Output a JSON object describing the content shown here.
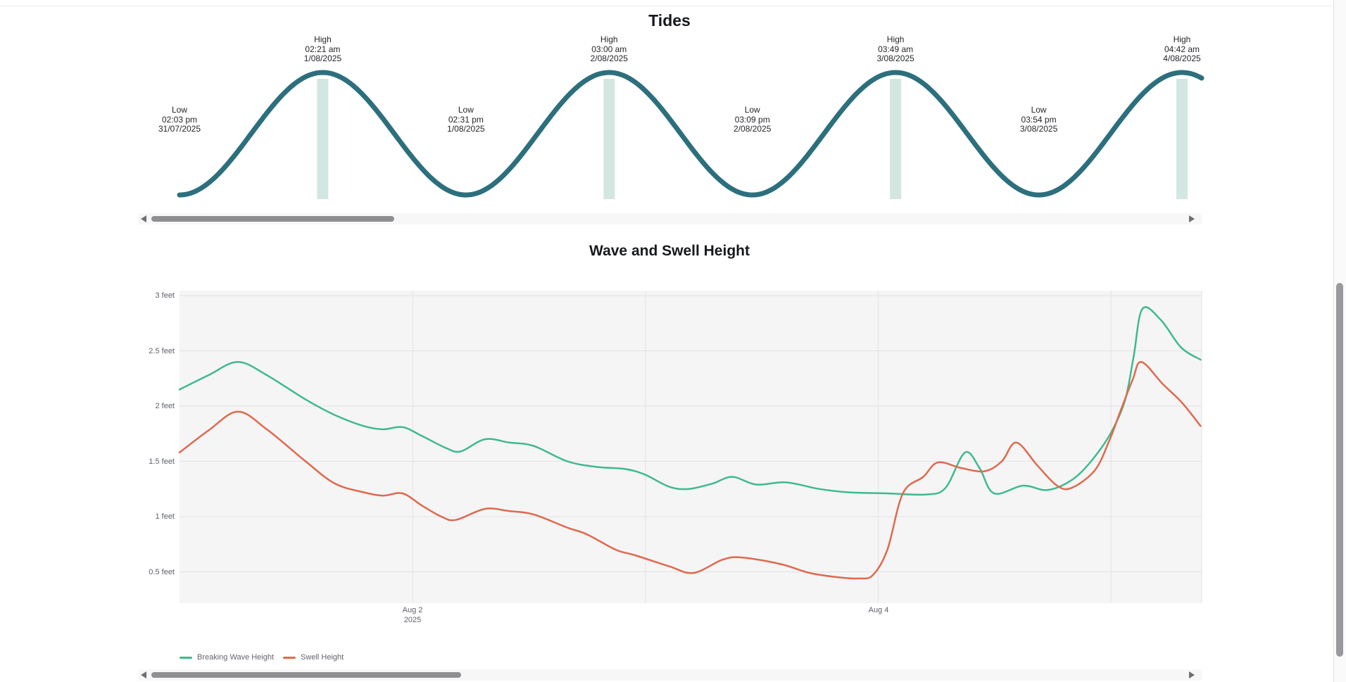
{
  "tides": {
    "title": "Tides",
    "colors": {
      "curve": "#2c6f7d",
      "band": "#d3e7e2"
    }
  },
  "wave": {
    "title": "Wave and Swell Height",
    "y_ticks": [
      "3 feet",
      "2.5 feet",
      "2 feet",
      "1.5 feet",
      "1 feet",
      "0.5 feet"
    ],
    "x_ticks": [
      {
        "label": "Aug 2",
        "sub": "2025"
      },
      {
        "label": "Aug 4",
        "sub": ""
      }
    ],
    "colors": {
      "grid": "#e3e3e7",
      "plot_bg": "#f5f5f6",
      "axis_text": "#5f626b",
      "legend_text": "#63656e"
    }
  },
  "chart_data": [
    {
      "type": "line",
      "title": "Tides",
      "x_axis": "time",
      "y_axis": "tide level (qualitative high/low curve)",
      "events": [
        {
          "phase": "Low",
          "time": "02:03 pm",
          "date": "31/07/2025"
        },
        {
          "phase": "High",
          "time": "02:21 am",
          "date": "1/08/2025"
        },
        {
          "phase": "Low",
          "time": "02:31 pm",
          "date": "1/08/2025"
        },
        {
          "phase": "High",
          "time": "03:00 am",
          "date": "2/08/2025"
        },
        {
          "phase": "Low",
          "time": "03:09 pm",
          "date": "2/08/2025"
        },
        {
          "phase": "High",
          "time": "03:49 am",
          "date": "3/08/2025"
        },
        {
          "phase": "Low",
          "time": "03:54 pm",
          "date": "3/08/2025"
        },
        {
          "phase": "High",
          "time": "04:42 am",
          "date": "4/08/2025"
        }
      ]
    },
    {
      "type": "line",
      "title": "Wave and Swell Height",
      "ylabel": "feet",
      "ylim": [
        0.2,
        3.05
      ],
      "x_unit": "hours since 2025-08-01 00:00",
      "x_ticks": [
        "Aug 2 2025",
        "Aug 4"
      ],
      "grid": true,
      "legend_position": "bottom-left",
      "series": [
        {
          "name": "Breaking Wave Height",
          "color": "#3fba8c",
          "points": [
            [
              0,
              2.15
            ],
            [
              3,
              2.28
            ],
            [
              6,
              2.4
            ],
            [
              9,
              2.28
            ],
            [
              13,
              2.06
            ],
            [
              16,
              1.92
            ],
            [
              19,
              1.82
            ],
            [
              21,
              1.79
            ],
            [
              23,
              1.81
            ],
            [
              25,
              1.73
            ],
            [
              27.5,
              1.62
            ],
            [
              29,
              1.59
            ],
            [
              31.5,
              1.7
            ],
            [
              34,
              1.67
            ],
            [
              36.5,
              1.64
            ],
            [
              40,
              1.5
            ],
            [
              43,
              1.45
            ],
            [
              46,
              1.43
            ],
            [
              48,
              1.38
            ],
            [
              50.5,
              1.27
            ],
            [
              52.5,
              1.25
            ],
            [
              55,
              1.3
            ],
            [
              57,
              1.36
            ],
            [
              59.5,
              1.29
            ],
            [
              62.5,
              1.31
            ],
            [
              66,
              1.25
            ],
            [
              69,
              1.22
            ],
            [
              73,
              1.21
            ],
            [
              77,
              1.2
            ],
            [
              79,
              1.26
            ],
            [
              81,
              1.58
            ],
            [
              82.5,
              1.44
            ],
            [
              84,
              1.21
            ],
            [
              87,
              1.28
            ],
            [
              89.5,
              1.24
            ],
            [
              92,
              1.33
            ],
            [
              94,
              1.5
            ],
            [
              96,
              1.75
            ],
            [
              97.5,
              2.05
            ],
            [
              98.4,
              2.45
            ],
            [
              99.3,
              2.88
            ],
            [
              101.2,
              2.78
            ],
            [
              103.3,
              2.53
            ],
            [
              105.3,
              2.42
            ]
          ]
        },
        {
          "name": "Swell Height",
          "color": "#e0694c",
          "points": [
            [
              0,
              1.58
            ],
            [
              3,
              1.78
            ],
            [
              6,
              1.95
            ],
            [
              9,
              1.79
            ],
            [
              13,
              1.5
            ],
            [
              16,
              1.3
            ],
            [
              19,
              1.22
            ],
            [
              21,
              1.19
            ],
            [
              23,
              1.21
            ],
            [
              25,
              1.1
            ],
            [
              27,
              1.0
            ],
            [
              28.5,
              0.97
            ],
            [
              31.5,
              1.07
            ],
            [
              34,
              1.05
            ],
            [
              36.5,
              1.02
            ],
            [
              40,
              0.9
            ],
            [
              42,
              0.84
            ],
            [
              45,
              0.7
            ],
            [
              47,
              0.65
            ],
            [
              50.5,
              0.55
            ],
            [
              53,
              0.49
            ],
            [
              56,
              0.61
            ],
            [
              58,
              0.63
            ],
            [
              62,
              0.57
            ],
            [
              65,
              0.49
            ],
            [
              68,
              0.45
            ],
            [
              70,
              0.44
            ],
            [
              71.5,
              0.47
            ],
            [
              73,
              0.7
            ],
            [
              74.6,
              1.21
            ],
            [
              76.7,
              1.36
            ],
            [
              78.2,
              1.49
            ],
            [
              80.6,
              1.44
            ],
            [
              83,
              1.41
            ],
            [
              84.8,
              1.5
            ],
            [
              86.3,
              1.67
            ],
            [
              88.5,
              1.46
            ],
            [
              90.5,
              1.28
            ],
            [
              92,
              1.26
            ],
            [
              94.4,
              1.42
            ],
            [
              95.9,
              1.69
            ],
            [
              97.1,
              1.97
            ],
            [
              98.3,
              2.24
            ],
            [
              99.2,
              2.4
            ],
            [
              101.4,
              2.2
            ],
            [
              103.4,
              2.03
            ],
            [
              105.3,
              1.82
            ]
          ]
        }
      ]
    }
  ]
}
